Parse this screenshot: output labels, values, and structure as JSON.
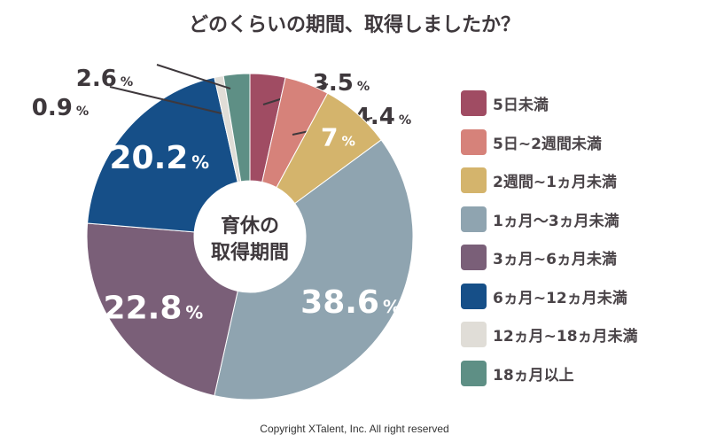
{
  "chart_data": {
    "type": "pie",
    "donut": true,
    "title": "どのくらいの期間、取得しましたか？",
    "center_label": [
      "育休の",
      "取得期間"
    ],
    "unit": "%",
    "start": "top",
    "direction": "clockwise",
    "legend_position": "right",
    "series": [
      {
        "name": "5日未満",
        "value": 3.5,
        "color": "#a04c63"
      },
      {
        "name": "5日~2週間未満",
        "value": 4.4,
        "color": "#d6827a"
      },
      {
        "name": "2週間~1ヵ月未満",
        "value": 7,
        "color": "#d4b46c"
      },
      {
        "name": "1ヵ月〜3ヵ月未満",
        "value": 38.6,
        "color": "#8fa4b0"
      },
      {
        "name": "3ヵ月~6ヵ月未満",
        "value": 22.8,
        "color": "#7a5f78"
      },
      {
        "name": "6ヵ月~12ヵ月未満",
        "value": 20.2,
        "color": "#164f88"
      },
      {
        "name": "12ヵ月~18ヵ月未満",
        "value": 0.9,
        "color": "#e0ddd7"
      },
      {
        "name": "18ヵ月以上",
        "value": 2.6,
        "color": "#5e8f85"
      }
    ]
  },
  "copyright": "Copyright XTalent, Inc. All right reserved"
}
